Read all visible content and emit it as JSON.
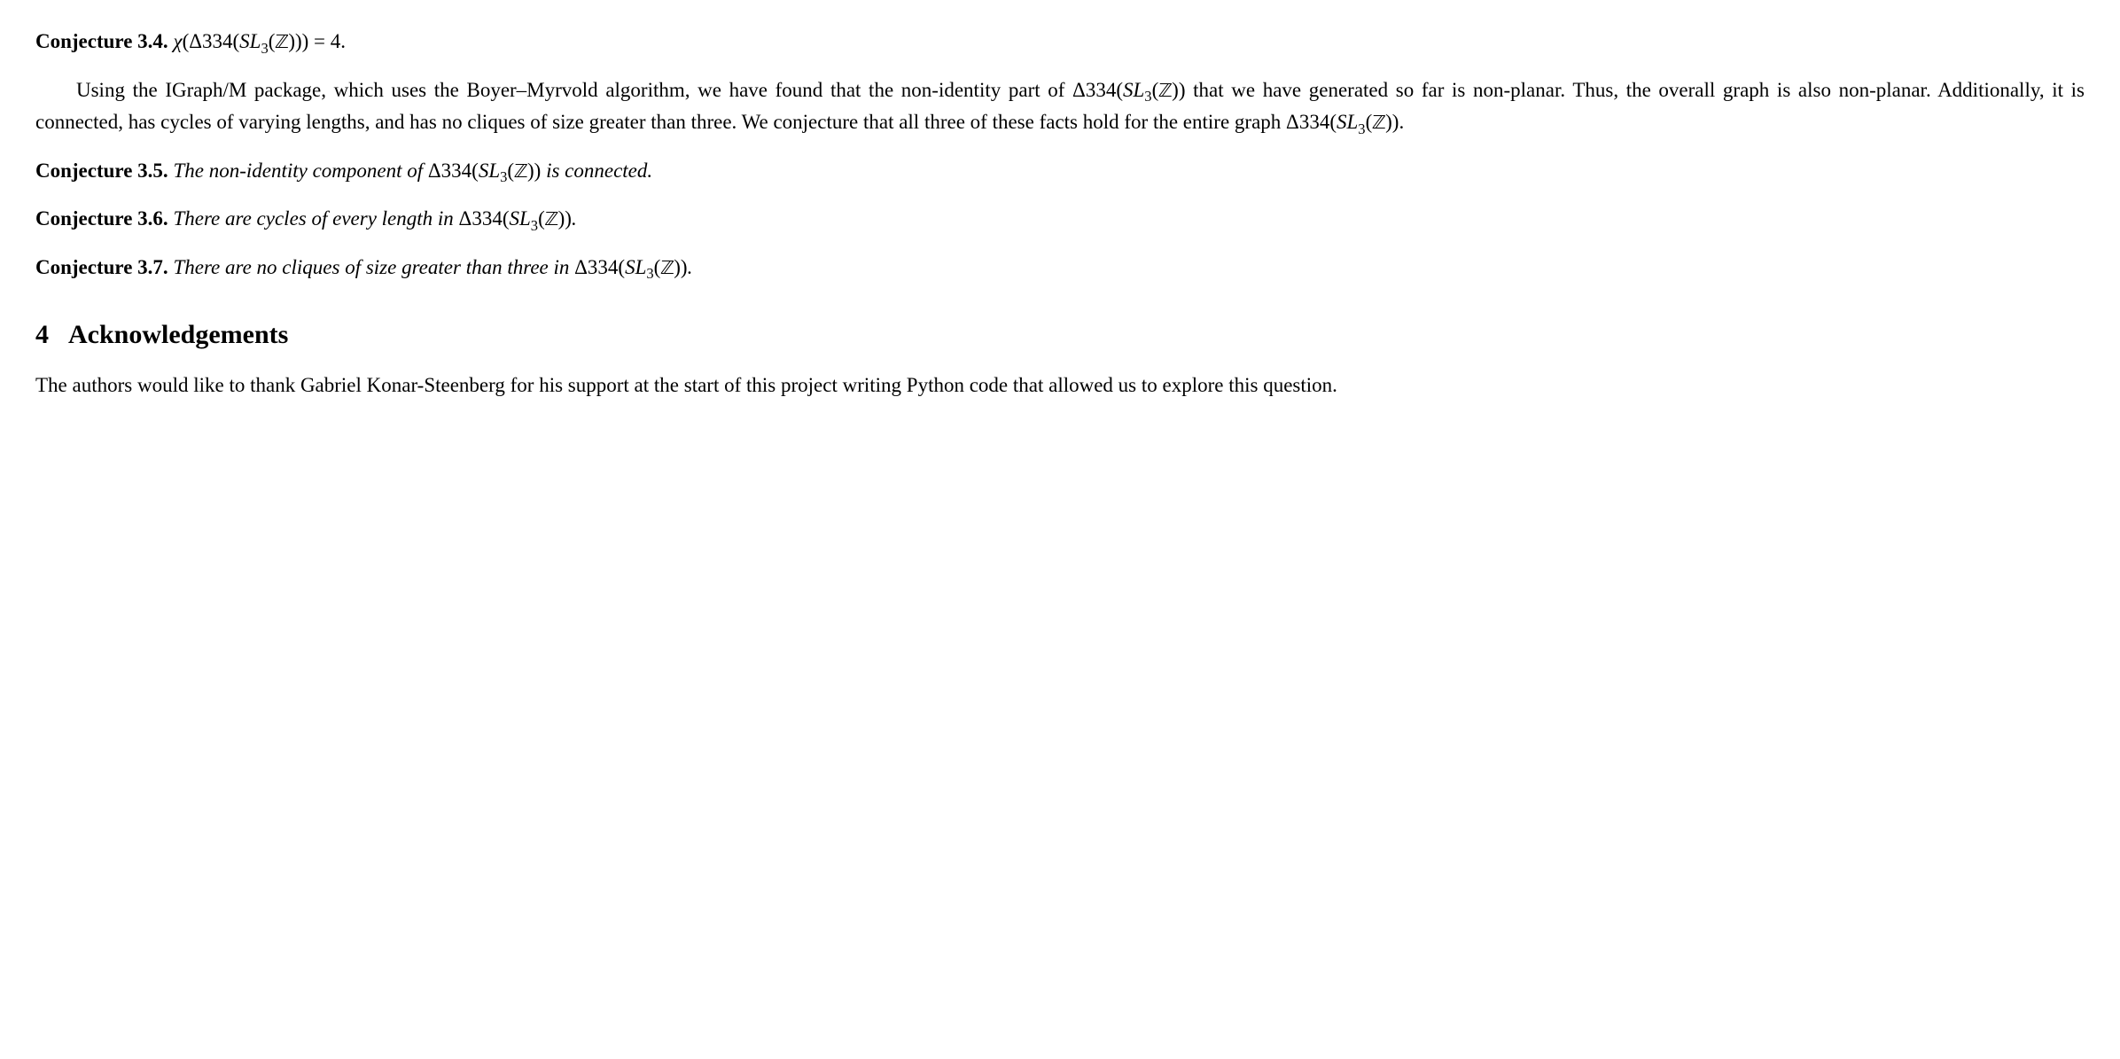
{
  "conj34": {
    "label": "Conjecture 3.4.",
    "statement_html": "<span class='math'>χ</span>(Δ334(<span class='math'>SL</span><span class='sub rm'>3</span>(<span class='blackboard'>ℤ</span>))) = 4."
  },
  "body_para": {
    "text_html": "Using the IGraph/M package, which uses the Boyer–Myrvold algorithm, we have found that the non-identity part of Δ334(<span class='math'>SL</span><span class='sub rm'>3</span>(<span class='blackboard'>ℤ</span>)) that we have generated so far is non-planar. Thus, the overall graph is also non-planar. Additionally, it is connected, has cycles of varying lengths, and has no cliques of size greater than three. We conjecture that all three of these facts hold for the entire graph Δ334(<span class='math'>SL</span><span class='sub rm'>3</span>(<span class='blackboard'>ℤ</span>))."
  },
  "conj35": {
    "label": "Conjecture 3.5.",
    "statement_html": "The non-identity component of <span class='rm'>Δ334(</span>SL<span class='sub rm'>3</span><span class='rm'>(</span><span class='blackboard'>ℤ</span><span class='rm'>))</span> is connected."
  },
  "conj36": {
    "label": "Conjecture 3.6.",
    "statement_html": "There are cycles of every length in <span class='rm'>Δ334(</span>SL<span class='sub rm'>3</span><span class='rm'>(</span><span class='blackboard'>ℤ</span><span class='rm'>))</span>."
  },
  "conj37": {
    "label": "Conjecture 3.7.",
    "statement_html": "There are no cliques of size greater than three in <span class='rm'>Δ334(</span>SL<span class='sub rm'>3</span><span class='rm'>(</span><span class='blackboard'>ℤ</span><span class='rm'>))</span>."
  },
  "section4": {
    "number": "4",
    "title": "Acknowledgements"
  },
  "ack_para": {
    "text": "The authors would like to thank Gabriel Konar-Steenberg for his support at the start of this project writing Python code that allowed us to explore this question."
  }
}
